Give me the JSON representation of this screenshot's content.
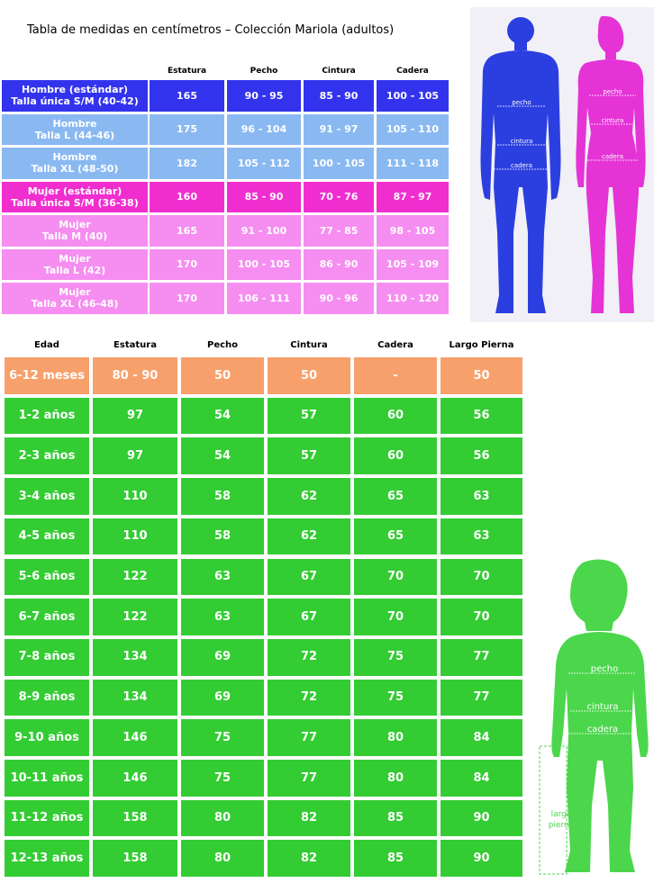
{
  "adult_table": {
    "title": "Tabla de medidas en centímetros – Colección Mariola  (adultos)",
    "headers": [
      "Estatura",
      "Pecho",
      "Cintura",
      "Cadera"
    ],
    "rows": [
      {
        "label1": "Hombre (estándar)",
        "label2": "Talla única S/M (40-42)",
        "values": [
          "165",
          "90 - 95",
          "85 - 90",
          "100 - 105"
        ],
        "color": "#3333ee"
      },
      {
        "label1": "Hombre",
        "label2": "Talla L (44-46)",
        "values": [
          "175",
          "96 - 104",
          "91 - 97",
          "105 - 110"
        ],
        "color": "#8ab9f2"
      },
      {
        "label1": "Hombre",
        "label2": "Talla XL (48-50)",
        "values": [
          "182",
          "105 - 112",
          "100 - 105",
          "111 - 118"
        ],
        "color": "#8ab9f2"
      },
      {
        "label1": "Mujer (estándar)",
        "label2": "Talla única S/M (36-38)",
        "values": [
          "160",
          "85 - 90",
          "70 - 76",
          "87 - 97"
        ],
        "color": "#f02ecf"
      },
      {
        "label1": "Mujer",
        "label2": "Talla M (40)",
        "values": [
          "165",
          "91 - 100",
          "77 - 85",
          "98 - 105"
        ],
        "color": "#f58ef0"
      },
      {
        "label1": "Mujer",
        "label2": "Talla L (42)",
        "values": [
          "170",
          "100 - 105",
          "86 - 90",
          "105 - 109"
        ],
        "color": "#f58ef0"
      },
      {
        "label1": "Mujer",
        "label2": "Talla XL (46-48)",
        "values": [
          "170",
          "106 - 111",
          "90 - 96",
          "110 - 120"
        ],
        "color": "#f58ef0"
      }
    ]
  },
  "kids_table": {
    "headers": [
      "Edad",
      "Estatura",
      "Pecho",
      "Cintura",
      "Cadera",
      "Largo Pierna"
    ],
    "rows": [
      {
        "values": [
          "6-12 meses",
          "80 - 90",
          "50",
          "50",
          "-",
          "50"
        ],
        "color": "#f7a06c"
      },
      {
        "values": [
          "1-2 años",
          "97",
          "54",
          "57",
          "60",
          "56"
        ],
        "color": "#33cc33"
      },
      {
        "values": [
          "2-3 años",
          "97",
          "54",
          "57",
          "60",
          "56"
        ],
        "color": "#33cc33"
      },
      {
        "values": [
          "3-4 años",
          "110",
          "58",
          "62",
          "65",
          "63"
        ],
        "color": "#33cc33"
      },
      {
        "values": [
          "4-5 años",
          "110",
          "58",
          "62",
          "65",
          "63"
        ],
        "color": "#33cc33"
      },
      {
        "values": [
          "5-6 años",
          "122",
          "63",
          "67",
          "70",
          "70"
        ],
        "color": "#33cc33"
      },
      {
        "values": [
          "6-7 años",
          "122",
          "63",
          "67",
          "70",
          "70"
        ],
        "color": "#33cc33"
      },
      {
        "values": [
          "7-8 años",
          "134",
          "69",
          "72",
          "75",
          "77"
        ],
        "color": "#33cc33"
      },
      {
        "values": [
          "8-9 años",
          "134",
          "69",
          "72",
          "75",
          "77"
        ],
        "color": "#33cc33"
      },
      {
        "values": [
          "9-10 años",
          "146",
          "75",
          "77",
          "80",
          "84"
        ],
        "color": "#33cc33"
      },
      {
        "values": [
          "10-11 años",
          "146",
          "75",
          "77",
          "80",
          "84"
        ],
        "color": "#33cc33"
      },
      {
        "values": [
          "11-12 años",
          "158",
          "80",
          "82",
          "85",
          "90"
        ],
        "color": "#33cc33"
      },
      {
        "values": [
          "12-13 años",
          "158",
          "80",
          "82",
          "85",
          "90"
        ],
        "color": "#33cc33"
      }
    ]
  },
  "figures": {
    "man": {
      "color": "#2b3fe0",
      "labels": {
        "chest": "pecho",
        "waist": "cintura",
        "hip": "cadera"
      }
    },
    "woman": {
      "color": "#e533d6",
      "labels": {
        "chest": "pecho",
        "waist": "cintura",
        "hip": "cadera"
      }
    },
    "child": {
      "color": "#4cd64c",
      "labels": {
        "chest": "pecho",
        "waist": "cintura",
        "hip": "cadera",
        "leg1": "largo",
        "leg2": "pierna"
      }
    }
  }
}
